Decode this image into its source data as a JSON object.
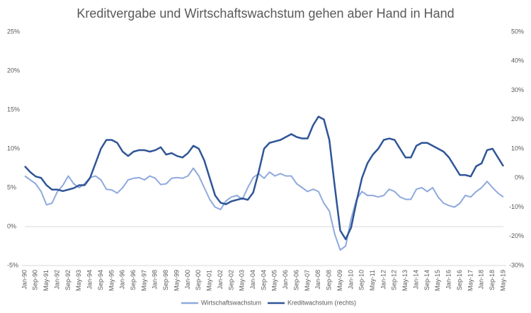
{
  "chart_data": {
    "type": "line",
    "title": "Kreditvergabe und Wirtschaftswachstum gehen aber Hand in Hand",
    "categories": [
      "Jan-90",
      null,
      "Sep-90",
      null,
      "May-91",
      null,
      "Jan-92",
      null,
      "Sep-92",
      null,
      "May-93",
      null,
      "Jan-94",
      null,
      "Sep-94",
      null,
      "May-95",
      null,
      "Jan-96",
      null,
      "Sep-96",
      null,
      "May-97",
      null,
      "Jan-98",
      null,
      "Sep-98",
      null,
      "May-99",
      null,
      "Jan-00",
      null,
      "Sep-00",
      null,
      "May-01",
      null,
      "Jan-02",
      null,
      "Sep-02",
      null,
      "May-03",
      null,
      "Jan-04",
      null,
      "Sep-04",
      null,
      "May-05",
      null,
      "Jan-06",
      null,
      "Sep-06",
      null,
      "May-07",
      null,
      "Jan-08",
      null,
      "Sep-08",
      null,
      "May-09",
      null,
      "Jan-10",
      null,
      "Sep-10",
      null,
      "May-11",
      null,
      "Jan-12",
      null,
      "Sep-12",
      null,
      "May-13",
      null,
      "Jan-14",
      null,
      "Sep-14",
      null,
      "May-15",
      null,
      "Jan-16",
      null,
      "Sep-16",
      null,
      "May-17",
      null,
      "Jan-18",
      null,
      "Sep-18",
      null,
      "May-19"
    ],
    "series": [
      {
        "name": "Wirtschaftswachstum",
        "color": "#8faadc",
        "axis": "y",
        "values": [
          6.5,
          6.0,
          5.5,
          4.5,
          2.8,
          3.0,
          4.5,
          5.3,
          6.5,
          5.5,
          5.0,
          5.5,
          6.3,
          6.5,
          6.0,
          4.8,
          4.7,
          4.3,
          5.0,
          6.0,
          6.2,
          6.3,
          6.0,
          6.5,
          6.2,
          5.4,
          5.5,
          6.2,
          6.3,
          6.2,
          6.5,
          7.5,
          6.5,
          5.0,
          3.5,
          2.5,
          2.2,
          3.3,
          3.8,
          4.0,
          3.5,
          5.0,
          6.3,
          6.8,
          6.2,
          7.0,
          6.5,
          6.8,
          6.5,
          6.5,
          5.5,
          5.0,
          4.5,
          4.8,
          4.5,
          3.0,
          2.0,
          -1.0,
          -3.0,
          -2.5,
          1.0,
          3.5,
          4.5,
          4.0,
          4.0,
          3.8,
          4.0,
          4.8,
          4.5,
          3.8,
          3.5,
          3.5,
          4.8,
          5.0,
          4.5,
          5.0,
          3.8,
          3.0,
          2.7,
          2.5,
          3.0,
          4.0,
          3.8,
          4.5,
          5.0,
          5.8,
          5.0,
          4.3,
          3.8
        ]
      },
      {
        "name": "Kreditwachstum (rechts)",
        "color": "#2f5597",
        "axis": "y2",
        "values": [
          4,
          2,
          0.5,
          0,
          -2.5,
          -4,
          -4,
          -4.5,
          -4,
          -3.5,
          -2.5,
          -2.5,
          0,
          5,
          10,
          13,
          13,
          12,
          9,
          7.5,
          9,
          9.5,
          9.5,
          9,
          9.5,
          10.5,
          8,
          8.5,
          7.5,
          7,
          8.5,
          11,
          10,
          6,
          0,
          -6,
          -8.5,
          -9,
          -8,
          -7.5,
          -7,
          -7.5,
          -5,
          2,
          10,
          12,
          12.5,
          13,
          14,
          15,
          14,
          13.5,
          13.5,
          18,
          21,
          20,
          13,
          -3,
          -18,
          -21,
          -17,
          -8,
          0,
          5,
          8,
          10,
          13,
          13.5,
          13,
          10,
          7,
          7,
          11,
          12,
          12,
          11,
          10,
          9,
          7,
          4,
          1,
          1,
          0.5,
          4,
          5,
          9.5,
          10,
          7,
          4
        ]
      }
    ],
    "ylim": [
      -5,
      25
    ],
    "yticks": [
      {
        "value": -5,
        "label": "-5%"
      },
      {
        "value": 0,
        "label": "0%"
      },
      {
        "value": 5,
        "label": "5%"
      },
      {
        "value": 10,
        "label": "10%"
      },
      {
        "value": 15,
        "label": "15%"
      },
      {
        "value": 20,
        "label": "20%"
      },
      {
        "value": 25,
        "label": "25%"
      }
    ],
    "y2lim": [
      -30,
      50
    ],
    "y2ticks": [
      {
        "value": -30,
        "label": "-30%"
      },
      {
        "value": -20,
        "label": "-20%"
      },
      {
        "value": -10,
        "label": "-10%"
      },
      {
        "value": 0,
        "label": "0%"
      },
      {
        "value": 10,
        "label": "10%"
      },
      {
        "value": 20,
        "label": "20%"
      },
      {
        "value": 30,
        "label": "30%"
      },
      {
        "value": 40,
        "label": "40%"
      },
      {
        "value": 50,
        "label": "50%"
      }
    ],
    "grid": false,
    "legend": "bottom"
  }
}
